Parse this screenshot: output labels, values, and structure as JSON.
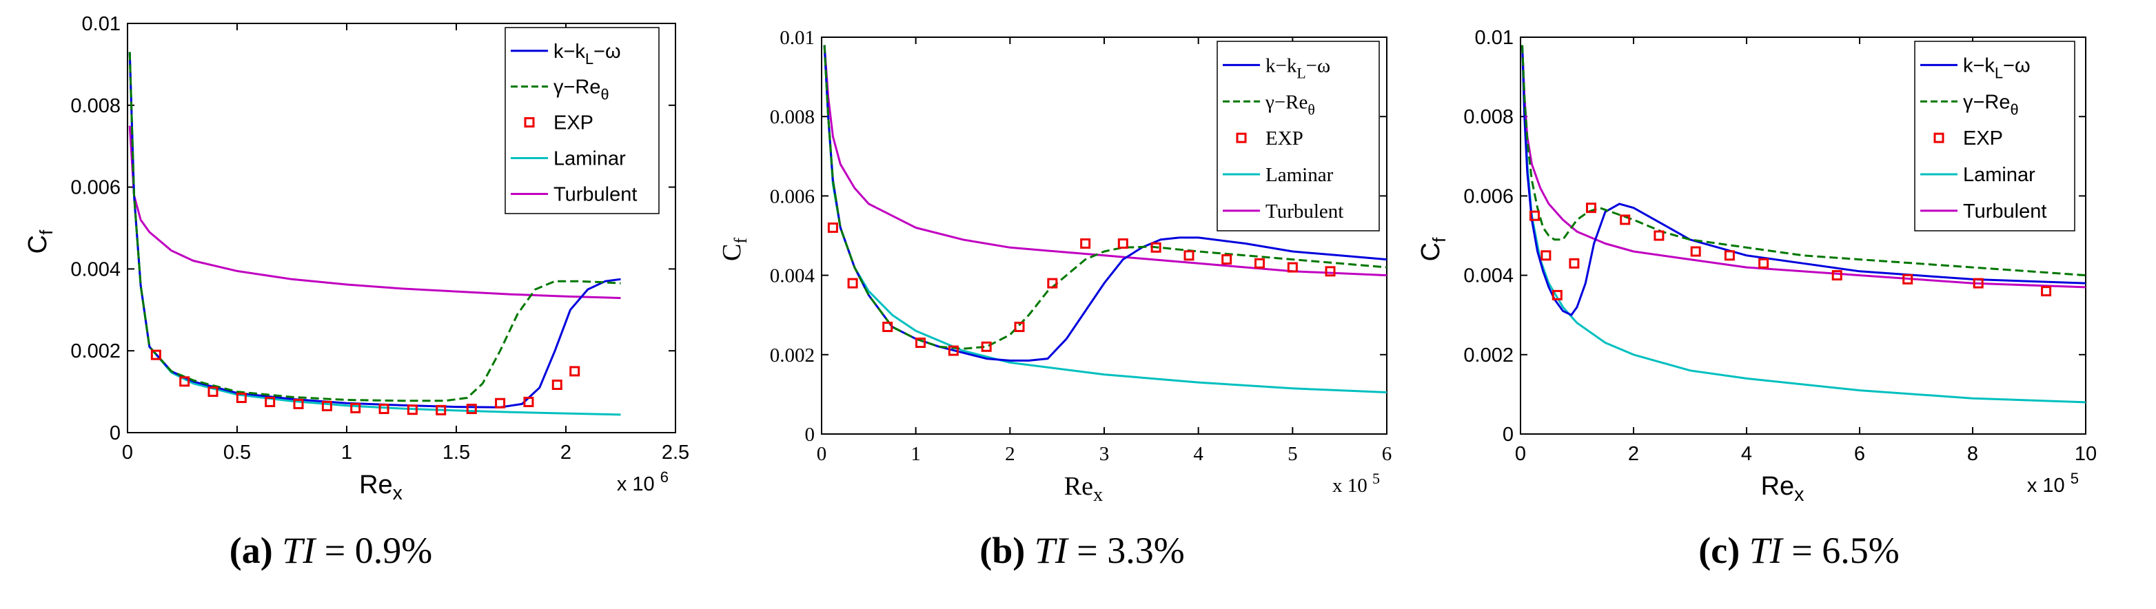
{
  "colors": {
    "k_kl_omega": "#0000dd",
    "gamma_re": "#007700",
    "exp": "#ee0000",
    "laminar": "#00bfbf",
    "turbulent": "#c000c0"
  },
  "legend_labels": {
    "k_kl_omega": "k−k",
    "k_kl_omega_sub": "L",
    "k_kl_omega_tail": "−ω",
    "gamma_re": "γ−Re",
    "gamma_re_sub": "θ",
    "exp": "EXP",
    "laminar": "Laminar",
    "turbulent": "Turbulent"
  },
  "ylabel": "C",
  "ylabel_sub": "f",
  "xlabel": "Re",
  "xlabel_sub": "x",
  "chart_data": [
    {
      "type": "line",
      "caption_letter": "(a)",
      "caption_ti": "TI",
      "caption_value": "= 0.9%",
      "x_multiplier": "x 10",
      "x_exponent": "6",
      "xlim": [
        0,
        2.5
      ],
      "ylim": [
        0,
        0.01
      ],
      "xticks": [
        "0",
        "0.5",
        "1",
        "1.5",
        "2",
        "2.5"
      ],
      "yticks": [
        "0",
        "0.002",
        "0.004",
        "0.006",
        "0.008",
        "0.01"
      ],
      "series": [
        {
          "name": "Laminar",
          "x": [
            0.01,
            0.03,
            0.06,
            0.1,
            0.2,
            0.3,
            0.5,
            0.75,
            1.0,
            1.25,
            1.5,
            1.75,
            2.0,
            2.25
          ],
          "y": [
            0.0093,
            0.0058,
            0.0036,
            0.0021,
            0.00147,
            0.0012,
            0.00093,
            0.00077,
            0.00066,
            0.00059,
            0.00054,
            0.0005,
            0.00047,
            0.00044
          ]
        },
        {
          "name": "Turbulent",
          "x": [
            0.01,
            0.03,
            0.06,
            0.1,
            0.2,
            0.3,
            0.5,
            0.75,
            1.0,
            1.25,
            1.5,
            1.75,
            2.0,
            2.25
          ],
          "y": [
            0.0075,
            0.0058,
            0.0052,
            0.0049,
            0.00445,
            0.0042,
            0.00395,
            0.00375,
            0.00362,
            0.00352,
            0.00345,
            0.00338,
            0.00333,
            0.00329
          ]
        },
        {
          "name": "k-kL-omega",
          "x": [
            0.01,
            0.03,
            0.06,
            0.1,
            0.2,
            0.3,
            0.5,
            0.75,
            1.0,
            1.25,
            1.5,
            1.7,
            1.8,
            1.88,
            1.95,
            2.02,
            2.1,
            2.18,
            2.25
          ],
          "y": [
            0.0093,
            0.0058,
            0.0036,
            0.0021,
            0.0015,
            0.00125,
            0.00097,
            0.00082,
            0.00072,
            0.00067,
            0.00063,
            0.00062,
            0.0007,
            0.0011,
            0.002,
            0.003,
            0.0035,
            0.0037,
            0.00375
          ]
        },
        {
          "name": "gamma-Re_theta",
          "x": [
            0.01,
            0.03,
            0.06,
            0.1,
            0.2,
            0.3,
            0.5,
            0.75,
            1.0,
            1.25,
            1.45,
            1.55,
            1.62,
            1.7,
            1.78,
            1.86,
            1.95,
            2.05,
            2.15,
            2.25
          ],
          "y": [
            0.0093,
            0.0058,
            0.0036,
            0.0021,
            0.0015,
            0.00128,
            0.001,
            0.00087,
            0.0008,
            0.00078,
            0.00078,
            0.00085,
            0.0012,
            0.002,
            0.0029,
            0.0035,
            0.0037,
            0.0037,
            0.00368,
            0.00365
          ]
        },
        {
          "name": "EXP",
          "x": [
            0.13,
            0.26,
            0.39,
            0.52,
            0.65,
            0.78,
            0.91,
            1.04,
            1.17,
            1.3,
            1.43,
            1.57,
            1.7,
            1.83,
            1.96,
            2.04
          ],
          "y": [
            0.0019,
            0.00125,
            0.001,
            0.00085,
            0.00075,
            0.0007,
            0.00065,
            0.0006,
            0.00058,
            0.00056,
            0.00055,
            0.00058,
            0.00072,
            0.00075,
            0.00117,
            0.0015
          ]
        }
      ]
    },
    {
      "type": "line",
      "caption_letter": "(b)",
      "caption_ti": "TI",
      "caption_value": "= 3.3%",
      "x_multiplier": "x 10",
      "x_exponent": "5",
      "xlim": [
        0,
        6
      ],
      "ylim": [
        0,
        0.01
      ],
      "xticks": [
        "0",
        "1",
        "2",
        "3",
        "4",
        "5",
        "6"
      ],
      "yticks": [
        "0",
        "0.002",
        "0.004",
        "0.006",
        "0.008",
        "0.01"
      ],
      "series": [
        {
          "name": "Laminar",
          "x": [
            0.03,
            0.07,
            0.12,
            0.2,
            0.35,
            0.5,
            0.75,
            1.0,
            1.5,
            2.0,
            3.0,
            4.0,
            5.0,
            6.0
          ],
          "y": [
            0.0098,
            0.008,
            0.0063,
            0.0052,
            0.0042,
            0.0036,
            0.003,
            0.0026,
            0.0021,
            0.0018,
            0.0015,
            0.0013,
            0.00115,
            0.00105
          ]
        },
        {
          "name": "Turbulent",
          "x": [
            0.03,
            0.07,
            0.12,
            0.2,
            0.35,
            0.5,
            0.75,
            1.0,
            1.5,
            2.0,
            3.0,
            4.0,
            5.0,
            6.0
          ],
          "y": [
            0.0098,
            0.0085,
            0.0075,
            0.0068,
            0.0062,
            0.0058,
            0.0055,
            0.0052,
            0.0049,
            0.0047,
            0.0045,
            0.0043,
            0.0041,
            0.004
          ]
        },
        {
          "name": "k-kL-omega",
          "x": [
            0.03,
            0.07,
            0.12,
            0.2,
            0.35,
            0.5,
            0.75,
            1.0,
            1.25,
            1.5,
            1.75,
            2.0,
            2.2,
            2.4,
            2.6,
            2.8,
            3.0,
            3.2,
            3.4,
            3.6,
            3.8,
            4.0,
            4.5,
            5.0,
            5.5,
            6.0
          ],
          "y": [
            0.0098,
            0.008,
            0.0064,
            0.0052,
            0.0042,
            0.0035,
            0.0027,
            0.0024,
            0.0022,
            0.00205,
            0.0019,
            0.00185,
            0.00185,
            0.0019,
            0.0024,
            0.0031,
            0.0038,
            0.0044,
            0.0047,
            0.0049,
            0.00495,
            0.00495,
            0.0048,
            0.0046,
            0.0045,
            0.0044
          ]
        },
        {
          "name": "gamma-Re_theta",
          "x": [
            0.03,
            0.07,
            0.12,
            0.2,
            0.35,
            0.5,
            0.75,
            1.0,
            1.25,
            1.5,
            1.75,
            2.0,
            2.2,
            2.4,
            2.6,
            2.8,
            3.0,
            3.2,
            3.5,
            4.0,
            4.5,
            5.0,
            5.5,
            6.0
          ],
          "y": [
            0.0098,
            0.008,
            0.0064,
            0.0052,
            0.0042,
            0.0035,
            0.0027,
            0.0024,
            0.0022,
            0.00215,
            0.0022,
            0.0025,
            0.003,
            0.0036,
            0.004,
            0.0044,
            0.0046,
            0.0047,
            0.00472,
            0.0046,
            0.0045,
            0.0044,
            0.0043,
            0.0042
          ]
        },
        {
          "name": "EXP",
          "x": [
            0.12,
            0.33,
            0.7,
            1.05,
            1.4,
            1.75,
            2.1,
            2.45,
            2.8,
            3.2,
            3.55,
            3.9,
            4.3,
            4.65,
            5.0,
            5.4
          ],
          "y": [
            0.0052,
            0.0038,
            0.0027,
            0.0023,
            0.0021,
            0.0022,
            0.0027,
            0.0038,
            0.0048,
            0.0048,
            0.0047,
            0.0045,
            0.0044,
            0.0043,
            0.0042,
            0.0041
          ]
        }
      ]
    },
    {
      "type": "line",
      "caption_letter": "(c)",
      "caption_ti": "TI",
      "caption_value": "= 6.5%",
      "x_multiplier": "x 10",
      "x_exponent": "5",
      "xlim": [
        0,
        10
      ],
      "ylim": [
        0,
        0.01
      ],
      "xticks": [
        "0",
        "2",
        "4",
        "6",
        "8",
        "10"
      ],
      "yticks": [
        "0",
        "0.002",
        "0.004",
        "0.006",
        "0.008",
        "0.01"
      ],
      "series": [
        {
          "name": "Laminar",
          "x": [
            0.03,
            0.07,
            0.12,
            0.2,
            0.35,
            0.5,
            0.75,
            1.0,
            1.5,
            2.0,
            3.0,
            4.0,
            6.0,
            8.0,
            10.0
          ],
          "y": [
            0.0098,
            0.0085,
            0.0068,
            0.0055,
            0.0044,
            0.0038,
            0.0032,
            0.0028,
            0.0023,
            0.002,
            0.0016,
            0.0014,
            0.0011,
            0.0009,
            0.0008
          ]
        },
        {
          "name": "Turbulent",
          "x": [
            0.03,
            0.07,
            0.12,
            0.2,
            0.35,
            0.5,
            0.75,
            1.0,
            1.5,
            2.0,
            3.0,
            4.0,
            6.0,
            8.0,
            10.0
          ],
          "y": [
            0.0098,
            0.0085,
            0.0075,
            0.0068,
            0.0062,
            0.0058,
            0.0054,
            0.0051,
            0.0048,
            0.0046,
            0.0044,
            0.0042,
            0.004,
            0.0038,
            0.0037
          ]
        },
        {
          "name": "k-kL-omega",
          "x": [
            0.03,
            0.07,
            0.12,
            0.2,
            0.3,
            0.4,
            0.5,
            0.6,
            0.75,
            0.9,
            1.0,
            1.15,
            1.3,
            1.5,
            1.75,
            2.0,
            2.5,
            3.0,
            4.0,
            5.0,
            6.0,
            8.0,
            10.0
          ],
          "y": [
            0.0098,
            0.008,
            0.0066,
            0.0054,
            0.0046,
            0.0041,
            0.0037,
            0.0034,
            0.0031,
            0.003,
            0.0032,
            0.0038,
            0.0048,
            0.0056,
            0.0058,
            0.0057,
            0.0053,
            0.0049,
            0.0045,
            0.0043,
            0.0041,
            0.0039,
            0.0038
          ]
        },
        {
          "name": "gamma-Re_theta",
          "x": [
            0.03,
            0.07,
            0.12,
            0.2,
            0.3,
            0.4,
            0.5,
            0.6,
            0.75,
            0.9,
            1.0,
            1.2,
            1.4,
            1.6,
            1.8,
            2.0,
            2.5,
            3.0,
            4.0,
            5.0,
            6.0,
            8.0,
            10.0
          ],
          "y": [
            0.0098,
            0.0085,
            0.0074,
            0.0064,
            0.0057,
            0.0052,
            0.005,
            0.0049,
            0.0049,
            0.0052,
            0.0054,
            0.0056,
            0.0057,
            0.0056,
            0.0055,
            0.0054,
            0.0051,
            0.0049,
            0.0047,
            0.0045,
            0.0044,
            0.0042,
            0.004
          ]
        },
        {
          "name": "EXP",
          "x": [
            0.25,
            0.45,
            0.65,
            0.95,
            1.25,
            1.85,
            2.45,
            3.1,
            3.7,
            4.3,
            5.6,
            6.85,
            8.1,
            9.3
          ],
          "y": [
            0.0055,
            0.0045,
            0.0035,
            0.0043,
            0.0057,
            0.0054,
            0.005,
            0.0046,
            0.0045,
            0.0043,
            0.004,
            0.0039,
            0.0038,
            0.0036
          ]
        }
      ]
    }
  ]
}
